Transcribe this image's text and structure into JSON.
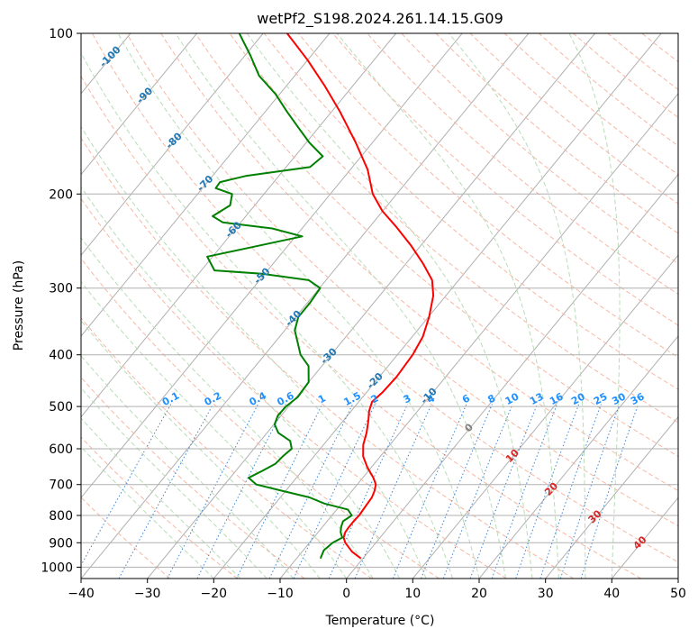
{
  "chart_data": {
    "type": "line",
    "chart_kind": "skew-T log-P diagram",
    "title": "wetPf2_S198.2024.261.14.15.G09",
    "xlabel": "Temperature (°C)",
    "ylabel": "Pressure (hPa)",
    "xlim": [
      -40,
      50
    ],
    "ylim": [
      1050,
      100
    ],
    "y_scale": "log",
    "x_ticks": [
      -40,
      -30,
      -20,
      -10,
      0,
      10,
      20,
      30,
      40,
      50
    ],
    "x_tick_labels": [
      "−40",
      "−30",
      "−20",
      "−10",
      "0",
      "10",
      "20",
      "30",
      "40",
      "50"
    ],
    "y_ticks": [
      100,
      200,
      300,
      400,
      500,
      600,
      700,
      800,
      900,
      1000
    ],
    "y_tick_labels": [
      "100",
      "200",
      "300",
      "400",
      "500",
      "600",
      "700",
      "800",
      "900",
      "1000"
    ],
    "grid": true,
    "series": [
      {
        "color": "#ff0000",
        "points": [
          [
            963,
            -0.3
          ],
          [
            935,
            -2.5
          ],
          [
            900,
            -4.6
          ],
          [
            880,
            -5.5
          ],
          [
            860,
            -5.9
          ],
          [
            840,
            -6.0
          ],
          [
            820,
            -6.0
          ],
          [
            800,
            -5.9
          ],
          [
            780,
            -6.0
          ],
          [
            760,
            -6.1
          ],
          [
            740,
            -6.2
          ],
          [
            720,
            -6.6
          ],
          [
            700,
            -7.2
          ],
          [
            680,
            -8.4
          ],
          [
            650,
            -10.6
          ],
          [
            620,
            -12.6
          ],
          [
            590,
            -14.0
          ],
          [
            560,
            -15.0
          ],
          [
            530,
            -16.3
          ],
          [
            510,
            -17.3
          ],
          [
            490,
            -18.0
          ],
          [
            470,
            -17.6
          ],
          [
            440,
            -17.4
          ],
          [
            400,
            -17.7
          ],
          [
            370,
            -18.4
          ],
          [
            340,
            -19.9
          ],
          [
            310,
            -21.9
          ],
          [
            290,
            -24.0
          ],
          [
            270,
            -27.4
          ],
          [
            250,
            -31.4
          ],
          [
            230,
            -36.1
          ],
          [
            215,
            -40.1
          ],
          [
            200,
            -43.6
          ],
          [
            180,
            -47.4
          ],
          [
            160,
            -52.6
          ],
          [
            140,
            -58.8
          ],
          [
            125,
            -64.4
          ],
          [
            112,
            -70.1
          ],
          [
            100,
            -76.4
          ]
        ]
      },
      {
        "color": "#008000",
        "points": [
          [
            963,
            -6.4
          ],
          [
            930,
            -6.9
          ],
          [
            900,
            -6.5
          ],
          [
            880,
            -5.7
          ],
          [
            860,
            -6.6
          ],
          [
            840,
            -7.2
          ],
          [
            820,
            -7.6
          ],
          [
            800,
            -7.0
          ],
          [
            780,
            -8.3
          ],
          [
            760,
            -12.6
          ],
          [
            740,
            -15.6
          ],
          [
            720,
            -20.4
          ],
          [
            700,
            -25.2
          ],
          [
            680,
            -27.2
          ],
          [
            660,
            -26.0
          ],
          [
            640,
            -24.9
          ],
          [
            620,
            -24.7
          ],
          [
            600,
            -24.3
          ],
          [
            580,
            -25.5
          ],
          [
            560,
            -28.3
          ],
          [
            540,
            -29.9
          ],
          [
            520,
            -30.5
          ],
          [
            500,
            -30.4
          ],
          [
            480,
            -29.8
          ],
          [
            450,
            -30.0
          ],
          [
            420,
            -32.0
          ],
          [
            400,
            -34.6
          ],
          [
            380,
            -36.5
          ],
          [
            360,
            -38.5
          ],
          [
            340,
            -39.6
          ],
          [
            320,
            -39.6
          ],
          [
            300,
            -39.9
          ],
          [
            290,
            -42.6
          ],
          [
            282,
            -50.5
          ],
          [
            278,
            -58.0
          ],
          [
            262,
            -60.8
          ],
          [
            250,
            -54.5
          ],
          [
            240,
            -49.0
          ],
          [
            232,
            -54.5
          ],
          [
            226,
            -62.7
          ],
          [
            220,
            -65.0
          ],
          [
            210,
            -63.7
          ],
          [
            200,
            -64.8
          ],
          [
            195,
            -68.0
          ],
          [
            190,
            -68.1
          ],
          [
            185,
            -65.0
          ],
          [
            178,
            -56.4
          ],
          [
            170,
            -55.8
          ],
          [
            160,
            -59.6
          ],
          [
            150,
            -63.1
          ],
          [
            140,
            -66.8
          ],
          [
            130,
            -70.6
          ],
          [
            120,
            -75.4
          ],
          [
            110,
            -79.2
          ],
          [
            100,
            -83.6
          ]
        ]
      }
    ],
    "reference_lines": {
      "isotherms": "solid grey, skewed",
      "dry_adiabats": "dashed light red",
      "moist_adiabats": "dashed light green",
      "mixing_ratio_lines": "dotted blue",
      "mixing_ratio_values": [
        "0.1",
        "0.2",
        "0.4",
        "0.6",
        "1",
        "1.5",
        "2",
        "3",
        "4",
        "6",
        "8",
        "10",
        "13",
        "16",
        "20",
        "25",
        "30",
        "36"
      ],
      "isotherm_labels_blue": [
        "-100",
        "-90",
        "-80",
        "-70",
        "-60",
        "-50",
        "-40",
        "-30",
        "-20",
        "-10"
      ],
      "isotherm_labels_grey": [
        "0"
      ],
      "isotherm_labels_red": [
        "10",
        "20",
        "30",
        "40"
      ]
    },
    "colors": {
      "temperature": "#ff0000",
      "dewpoint": "#008000",
      "isotherm_label_cold": "#1f77b4",
      "mixing_ratio_label": "#1e90ff",
      "isotherm_label_warm": "#d62728",
      "isotherm_label_zero": "#808080"
    }
  }
}
